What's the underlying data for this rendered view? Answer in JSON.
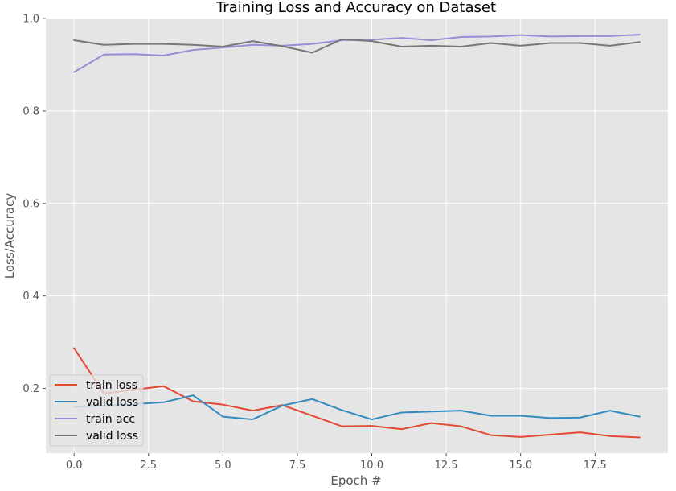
{
  "chart_data": {
    "type": "line",
    "title": "Training Loss and Accuracy on Dataset",
    "xlabel": "Epoch #",
    "ylabel": "Loss/Accuracy",
    "xlim": [
      -0.95,
      19.95
    ],
    "ylim": [
      0.06,
      1.0
    ],
    "x_ticks": [
      0.0,
      2.5,
      5.0,
      7.5,
      10.0,
      12.5,
      15.0,
      17.5
    ],
    "x_tick_labels": [
      "0.0",
      "2.5",
      "5.0",
      "7.5",
      "10.0",
      "12.5",
      "15.0",
      "17.5"
    ],
    "y_ticks": [
      0.2,
      0.4,
      0.6,
      0.8,
      1.0
    ],
    "y_tick_labels": [
      "0.2",
      "0.4",
      "0.6",
      "0.8",
      "1.0"
    ],
    "grid": true,
    "legend_position": "lower-left",
    "x": [
      0,
      1,
      2,
      3,
      4,
      5,
      6,
      7,
      8,
      9,
      10,
      11,
      12,
      13,
      14,
      15,
      16,
      17,
      18,
      19
    ],
    "series": [
      {
        "name": "train loss",
        "color": "#E24A33",
        "values": [
          0.287,
          0.189,
          0.197,
          0.205,
          0.172,
          0.165,
          0.152,
          0.164,
          0.141,
          0.118,
          0.119,
          0.112,
          0.125,
          0.118,
          0.099,
          0.095,
          0.1,
          0.105,
          0.097,
          0.094
        ]
      },
      {
        "name": "valid loss",
        "color": "#348ABD",
        "values": [
          0.16,
          0.163,
          0.166,
          0.17,
          0.185,
          0.139,
          0.133,
          0.163,
          0.177,
          0.153,
          0.133,
          0.148,
          0.15,
          0.152,
          0.141,
          0.141,
          0.136,
          0.137,
          0.152,
          0.139
        ]
      },
      {
        "name": "train acc",
        "color": "#988ED5",
        "values": [
          0.884,
          0.922,
          0.923,
          0.92,
          0.932,
          0.937,
          0.943,
          0.941,
          0.945,
          0.953,
          0.954,
          0.958,
          0.953,
          0.96,
          0.961,
          0.964,
          0.961,
          0.962,
          0.962,
          0.965
        ]
      },
      {
        "name": "valid loss",
        "color": "#777777",
        "values": [
          0.953,
          0.943,
          0.945,
          0.945,
          0.943,
          0.939,
          0.951,
          0.94,
          0.926,
          0.955,
          0.951,
          0.939,
          0.941,
          0.939,
          0.947,
          0.941,
          0.947,
          0.947,
          0.941,
          0.949
        ]
      }
    ]
  }
}
